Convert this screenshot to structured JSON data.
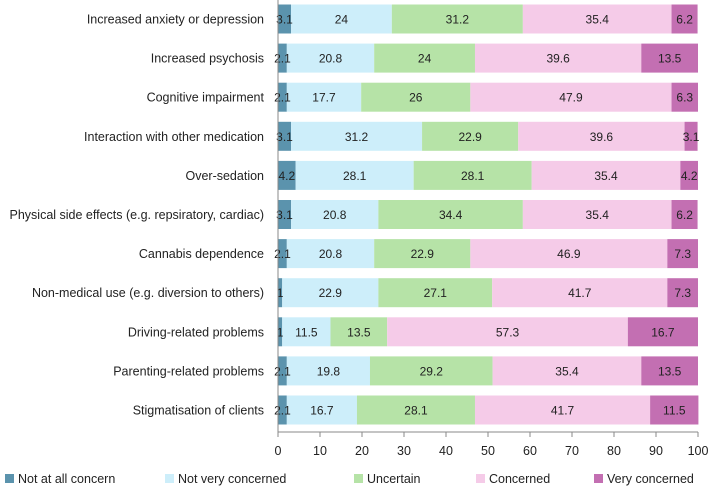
{
  "chart_data": {
    "type": "bar",
    "orientation": "horizontal",
    "stacked": true,
    "title": "",
    "xlabel": "",
    "ylabel": "",
    "xlim": [
      0,
      100
    ],
    "x_ticks": [
      0,
      10,
      20,
      30,
      40,
      50,
      60,
      70,
      80,
      90,
      100
    ],
    "grid": false,
    "legend_position": "bottom",
    "categories": [
      "Increased anxiety or depression",
      "Increased psychosis",
      "Cognitive impairment",
      "Interaction with other medication",
      "Over-sedation",
      "Physical side effects (e.g. repsiratory, cardiac)",
      "Cannabis dependence",
      "Non-medical use (e.g. diversion to others)",
      "Driving-related problems",
      "Parenting-related problems",
      "Stigmatisation of clients"
    ],
    "series": [
      {
        "name": "Not at all concern",
        "color": "#5b93ad",
        "values": [
          3.1,
          2.1,
          2.1,
          3.1,
          4.2,
          3.1,
          2.1,
          1,
          1,
          2.1,
          2.1
        ]
      },
      {
        "name": "Not very concerned",
        "color": "#cdeefa",
        "values": [
          24,
          20.8,
          17.7,
          31.2,
          28.1,
          20.8,
          20.8,
          22.9,
          11.5,
          19.8,
          16.7
        ]
      },
      {
        "name": "Uncertain",
        "color": "#b6e3a7",
        "values": [
          31.2,
          24,
          26,
          22.9,
          28.1,
          34.4,
          22.9,
          27.1,
          13.5,
          29.2,
          28.1
        ]
      },
      {
        "name": "Concerned",
        "color": "#f5cbe8",
        "values": [
          35.4,
          39.6,
          47.9,
          39.6,
          35.4,
          35.4,
          46.9,
          41.7,
          57.3,
          35.4,
          41.7
        ]
      },
      {
        "name": "Very concerned",
        "color": "#c36fb2",
        "values": [
          6.2,
          13.5,
          6.3,
          3.1,
          4.2,
          6.2,
          7.3,
          7.3,
          16.7,
          13.5,
          11.5
        ]
      }
    ]
  }
}
